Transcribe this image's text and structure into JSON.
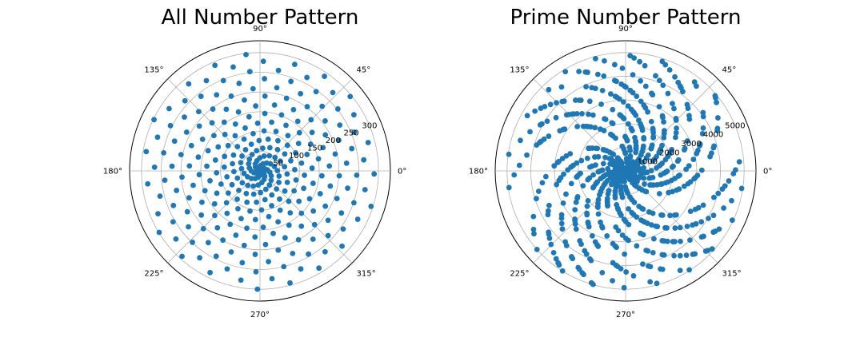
{
  "chart_data": [
    {
      "type": "scatter",
      "subtype": "polar",
      "title": "All Number Pattern",
      "series": [
        {
          "rule": "r = n, theta = n radians",
          "n_start": 1,
          "n_end": 300,
          "color": "#1f77b4"
        }
      ],
      "rlim": [
        0,
        330
      ],
      "r_ticks": [
        50,
        100,
        150,
        200,
        250,
        300
      ],
      "r_tick_labels": [
        "50",
        "100",
        "150",
        "200",
        "250",
        "300"
      ],
      "theta_ticks_deg": [
        0,
        45,
        90,
        135,
        180,
        225,
        270,
        315
      ],
      "theta_tick_labels": [
        "0°",
        "45°",
        "90°",
        "135°",
        "180°",
        "225°",
        "270°",
        "315°"
      ],
      "grid": true
    },
    {
      "type": "scatter",
      "subtype": "polar",
      "title": "Prime Number Pattern",
      "series": [
        {
          "rule": "r = p, theta = p radians for each prime p",
          "n_start": 2,
          "n_end": 5000,
          "primes_only": true,
          "color": "#1f77b4"
        }
      ],
      "rlim": [
        0,
        5500
      ],
      "r_ticks": [
        1000,
        2000,
        3000,
        4000,
        5000
      ],
      "r_tick_labels": [
        "1000",
        "2000",
        "3000",
        "4000",
        "5000"
      ],
      "theta_ticks_deg": [
        0,
        45,
        90,
        135,
        180,
        225,
        270,
        315
      ],
      "theta_tick_labels": [
        "0°",
        "45°",
        "90°",
        "135°",
        "180°",
        "225°",
        "270°",
        "315°"
      ],
      "grid": true
    }
  ]
}
